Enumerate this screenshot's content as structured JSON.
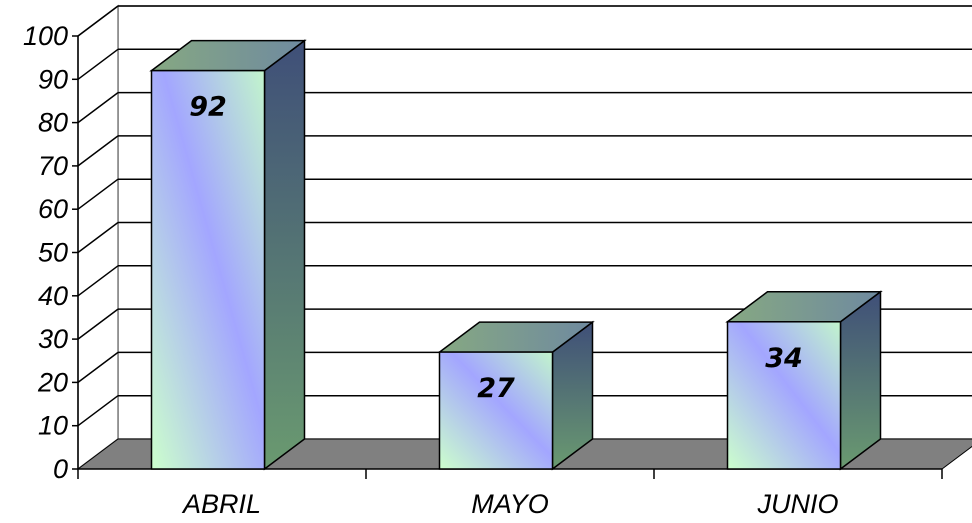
{
  "chart_data": {
    "type": "bar",
    "style": "3d-column",
    "categories": [
      "ABRIL",
      "MAYO",
      "JUNIO"
    ],
    "values": [
      92,
      27,
      34
    ],
    "data_labels": [
      "92",
      "27",
      "34"
    ],
    "ylim": [
      0,
      100
    ],
    "y_ticks": [
      "0",
      "10",
      "20",
      "30",
      "40",
      "50",
      "60",
      "70",
      "80",
      "90",
      "100"
    ],
    "grid": true,
    "legend": "none",
    "colors": {
      "bar_gradient_start": "#c8fcc8",
      "bar_gradient_mid": "#a0a8ff",
      "bar_gradient_end": "#c8fcc8",
      "bar_side": "#5a7a62",
      "bar_top": "#8aa888",
      "floor": "#808080",
      "wall": "#ffffff"
    }
  }
}
